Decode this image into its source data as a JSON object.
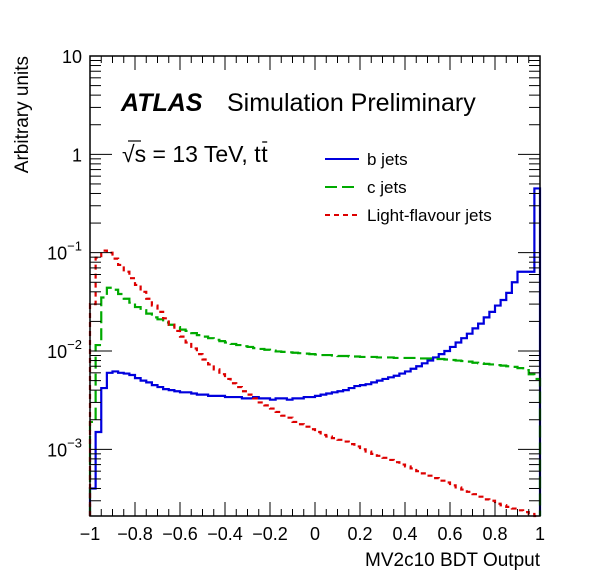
{
  "chart_data": {
    "type": "line",
    "style": "step-histogram",
    "title": "",
    "xlabel": "MV2c10 BDT Output",
    "ylabel": "Arbitrary units",
    "xlim": [
      -1,
      1
    ],
    "ylim": [
      0.00021,
      10
    ],
    "yscale": "log",
    "grid": false,
    "x_ticks": [
      -1,
      -0.8,
      -0.6,
      -0.4,
      -0.2,
      0,
      0.2,
      0.4,
      0.6,
      0.8,
      1
    ],
    "x_tick_labels": [
      "−1",
      "−0.8",
      "−0.6",
      "−0.4",
      "−0.2",
      "0",
      "0.2",
      "0.4",
      "0.6",
      "0.8",
      "1"
    ],
    "y_ticks": [
      {
        "value": 10,
        "base": "10",
        "exp": ""
      },
      {
        "value": 1,
        "base": "1",
        "exp": ""
      },
      {
        "value": 0.1,
        "base": "10",
        "exp": "−1"
      },
      {
        "value": 0.01,
        "base": "10",
        "exp": "−2"
      },
      {
        "value": 0.001,
        "base": "10",
        "exp": "−3"
      }
    ],
    "annotations": {
      "experiment": "ATLAS",
      "label": "Simulation Preliminary",
      "energy_prefix": "√s = 13 TeV, t",
      "energy_suffix": "t"
    },
    "legend_position": "upper-right",
    "bin_edges_start": -1,
    "bin_width": 0.025,
    "series": [
      {
        "name": "b jets",
        "color": "#0000dd",
        "dash": "solid",
        "values": [
          0.0004,
          0.0015,
          0.0042,
          0.006,
          0.0062,
          0.006,
          0.0059,
          0.0057,
          0.0053,
          0.005,
          0.0048,
          0.0045,
          0.0043,
          0.0041,
          0.004,
          0.0039,
          0.0038,
          0.0038,
          0.0037,
          0.0036,
          0.0036,
          0.0035,
          0.0035,
          0.0035,
          0.0034,
          0.0034,
          0.0034,
          0.0033,
          0.0033,
          0.0034,
          0.0033,
          0.0033,
          0.0032,
          0.0033,
          0.0033,
          0.0032,
          0.0033,
          0.0033,
          0.0034,
          0.0034,
          0.0035,
          0.0036,
          0.0037,
          0.0038,
          0.0039,
          0.004,
          0.0042,
          0.0044,
          0.0045,
          0.0046,
          0.0048,
          0.005,
          0.0052,
          0.0054,
          0.0056,
          0.0059,
          0.0062,
          0.0066,
          0.007,
          0.0075,
          0.008,
          0.0086,
          0.0093,
          0.01,
          0.011,
          0.0122,
          0.0135,
          0.015,
          0.017,
          0.019,
          0.022,
          0.025,
          0.029,
          0.033,
          0.039,
          0.05,
          0.064,
          0.064,
          0.064,
          0.45
        ]
      },
      {
        "name": "c jets",
        "color": "#00aa00",
        "dash": "long-dash",
        "values": [
          0.0019,
          0.0115,
          0.035,
          0.044,
          0.042,
          0.038,
          0.034,
          0.031,
          0.028,
          0.026,
          0.024,
          0.022,
          0.021,
          0.0195,
          0.0185,
          0.0175,
          0.0165,
          0.016,
          0.0152,
          0.0145,
          0.014,
          0.0135,
          0.013,
          0.0126,
          0.0122,
          0.0118,
          0.0115,
          0.0112,
          0.011,
          0.0107,
          0.0105,
          0.0103,
          0.0101,
          0.0099,
          0.0098,
          0.0097,
          0.0096,
          0.0095,
          0.0094,
          0.0093,
          0.0092,
          0.0091,
          0.0091,
          0.009,
          0.0089,
          0.0089,
          0.0088,
          0.0088,
          0.0087,
          0.0087,
          0.0087,
          0.0086,
          0.0086,
          0.0086,
          0.0085,
          0.0085,
          0.0085,
          0.0085,
          0.0084,
          0.0084,
          0.0084,
          0.0083,
          0.0083,
          0.0082,
          0.0081,
          0.008,
          0.0079,
          0.0078,
          0.0076,
          0.0075,
          0.0074,
          0.0073,
          0.0072,
          0.0071,
          0.007,
          0.0069,
          0.0067,
          0.0064,
          0.0058,
          0.0052
        ]
      },
      {
        "name": "Light-flavour jets",
        "color": "#dd0000",
        "dash": "short-dash",
        "values": [
          0.03,
          0.089,
          0.105,
          0.1,
          0.087,
          0.075,
          0.064,
          0.055,
          0.047,
          0.04,
          0.034,
          0.029,
          0.025,
          0.0215,
          0.0185,
          0.016,
          0.014,
          0.0122,
          0.0106,
          0.0093,
          0.0082,
          0.0073,
          0.0065,
          0.0058,
          0.0052,
          0.0047,
          0.0043,
          0.0039,
          0.0036,
          0.0033,
          0.003,
          0.0028,
          0.0026,
          0.0024,
          0.0022,
          0.0021,
          0.0019,
          0.0018,
          0.0017,
          0.0016,
          0.0015,
          0.0014,
          0.00135,
          0.0013,
          0.00125,
          0.0012,
          0.00113,
          0.00107,
          0.001,
          0.00095,
          0.0009,
          0.00086,
          0.00082,
          0.00078,
          0.00074,
          0.0007,
          0.00067,
          0.00064,
          0.0006,
          0.00057,
          0.00054,
          0.00051,
          0.00048,
          0.00046,
          0.00043,
          0.00041,
          0.00039,
          0.00037,
          0.00035,
          0.00033,
          0.00031,
          0.0003,
          0.00028,
          0.00027,
          0.00026,
          0.00025,
          0.00024,
          0.00023,
          0.00022,
          0.0002
        ]
      }
    ]
  }
}
